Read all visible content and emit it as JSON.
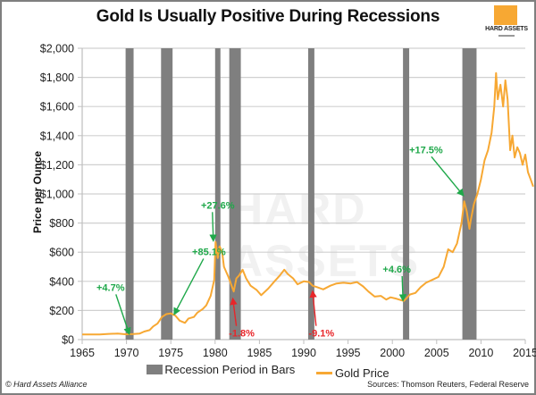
{
  "header": {
    "title": "Gold Is Usually Positive During Recessions"
  },
  "logo": {
    "text": "HARD ASSETS",
    "color": "#f7a833"
  },
  "footer": {
    "copyright": "© Hard Assets Alliance",
    "sources": "Sources: Thomson Reuters, Federal Reserve"
  },
  "chart_data": {
    "type": "line",
    "title": "Gold Is Usually Positive During Recessions",
    "xlabel": "",
    "ylabel": "Price per Ounce",
    "xlim": [
      1965,
      2015
    ],
    "ylim": [
      0,
      2000
    ],
    "x_ticks": [
      1965,
      1970,
      1975,
      1980,
      1985,
      1990,
      1995,
      2000,
      2005,
      2010,
      2015
    ],
    "x_tick_labels": [
      "1965",
      "1970",
      "1975",
      "1980",
      "1985",
      "1990",
      "1995",
      "2000",
      "2005",
      "2010",
      "2015"
    ],
    "y_ticks": [
      0,
      200,
      400,
      600,
      800,
      1000,
      1200,
      1400,
      1600,
      1800,
      2000
    ],
    "y_tick_labels": [
      "$0",
      "$200",
      "$400",
      "$600",
      "$800",
      "$1,000",
      "$1,200",
      "$1,400",
      "$1,600",
      "$1,800",
      "$2,000"
    ],
    "grid": "horizontal",
    "legend": {
      "position": "bottom",
      "entries": [
        "Recession Period in Bars",
        "Gold Price"
      ]
    },
    "colors": {
      "gold": "#f7a833",
      "recession": "#7f7f7f",
      "positive": "#1fa84a",
      "negative": "#e8262a",
      "grid": "#d0d0d0"
    },
    "recessions": [
      {
        "start": 1969.9,
        "end": 1970.8
      },
      {
        "start": 1973.9,
        "end": 1975.2
      },
      {
        "start": 1980.0,
        "end": 1980.6
      },
      {
        "start": 1981.6,
        "end": 1982.9
      },
      {
        "start": 1990.5,
        "end": 1991.2
      },
      {
        "start": 2001.2,
        "end": 2001.9
      },
      {
        "start": 2007.9,
        "end": 2009.5
      }
    ],
    "series": [
      {
        "name": "Gold Price",
        "x": [
          1965,
          1967,
          1968,
          1969,
          1970,
          1970.8,
          1971.5,
          1972,
          1972.6,
          1973,
          1973.5,
          1974,
          1974.5,
          1975,
          1975.5,
          1976,
          1976.6,
          1977,
          1977.6,
          1978,
          1978.6,
          1979,
          1979.5,
          1979.9,
          1980.05,
          1980.3,
          1980.5,
          1980.8,
          1981,
          1981.5,
          1982.1,
          1982.4,
          1982.7,
          1983.1,
          1983.5,
          1984,
          1984.7,
          1985.2,
          1986,
          1986.7,
          1987.3,
          1987.8,
          1988.2,
          1988.8,
          1989.3,
          1990,
          1990.6,
          1991,
          1991.5,
          1992.2,
          1993,
          1993.7,
          1994.5,
          1995.3,
          1996,
          1996.7,
          1997.3,
          1998,
          1998.7,
          1999.3,
          1999.8,
          2000.5,
          2001.3,
          2002,
          2002.6,
          2003.2,
          2003.8,
          2004.5,
          2005.2,
          2005.8,
          2006.3,
          2006.8,
          2007.3,
          2007.8,
          2008.1,
          2008.4,
          2008.7,
          2008.85,
          2009.2,
          2009.6,
          2010,
          2010.4,
          2010.8,
          2011.2,
          2011.5,
          2011.7,
          2011.9,
          2012.2,
          2012.5,
          2012.75,
          2013.0,
          2013.3,
          2013.55,
          2013.8,
          2014.1,
          2014.4,
          2014.7,
          2015.0,
          2015.3,
          2015.6,
          2015.9
        ],
        "y": [
          35,
          35,
          39,
          41,
          36,
          38,
          42,
          55,
          65,
          90,
          110,
          155,
          175,
          180,
          165,
          130,
          115,
          145,
          155,
          185,
          210,
          235,
          300,
          410,
          670,
          560,
          640,
          600,
          500,
          430,
          330,
          420,
          440,
          480,
          420,
          370,
          340,
          305,
          350,
          400,
          440,
          480,
          450,
          420,
          380,
          400,
          395,
          370,
          360,
          345,
          370,
          385,
          390,
          385,
          395,
          365,
          330,
          295,
          300,
          275,
          290,
          280,
          265,
          310,
          320,
          360,
          390,
          410,
          430,
          500,
          620,
          600,
          660,
          800,
          950,
          880,
          760,
          820,
          930,
          1000,
          1100,
          1230,
          1300,
          1420,
          1600,
          1830,
          1650,
          1750,
          1600,
          1780,
          1650,
          1300,
          1400,
          1250,
          1320,
          1280,
          1200,
          1270,
          1150,
          1100,
          1050
        ],
        "color": "#f7a833"
      }
    ],
    "annotations": [
      {
        "text": "+4.7%",
        "type": "positive",
        "label_x": 1968.2,
        "label_y": 335,
        "arrow_to_x": 1970.3,
        "arrow_to_y": 40
      },
      {
        "text": "+85.1%",
        "type": "positive",
        "label_x": 1979.3,
        "label_y": 580,
        "arrow_to_x": 1975.4,
        "arrow_to_y": 175
      },
      {
        "text": "+27.6%",
        "type": "positive",
        "label_x": 1980.3,
        "label_y": 900,
        "arrow_to_x": 1979.8,
        "arrow_to_y": 680
      },
      {
        "text": "-1.8%",
        "type": "negative",
        "label_x": 1983.0,
        "label_y": 20,
        "arrow_to_x": 1982.0,
        "arrow_to_y": 280
      },
      {
        "text": "-9.1%",
        "type": "negative",
        "label_x": 1992.0,
        "label_y": 20,
        "arrow_to_x": 1991.0,
        "arrow_to_y": 330
      },
      {
        "text": "+4.6%",
        "type": "positive",
        "label_x": 2000.5,
        "label_y": 460,
        "arrow_to_x": 2001.2,
        "arrow_to_y": 270
      },
      {
        "text": "+17.5%",
        "type": "positive",
        "label_x": 2003.8,
        "label_y": 1280,
        "arrow_to_x": 2008.0,
        "arrow_to_y": 990
      }
    ]
  }
}
